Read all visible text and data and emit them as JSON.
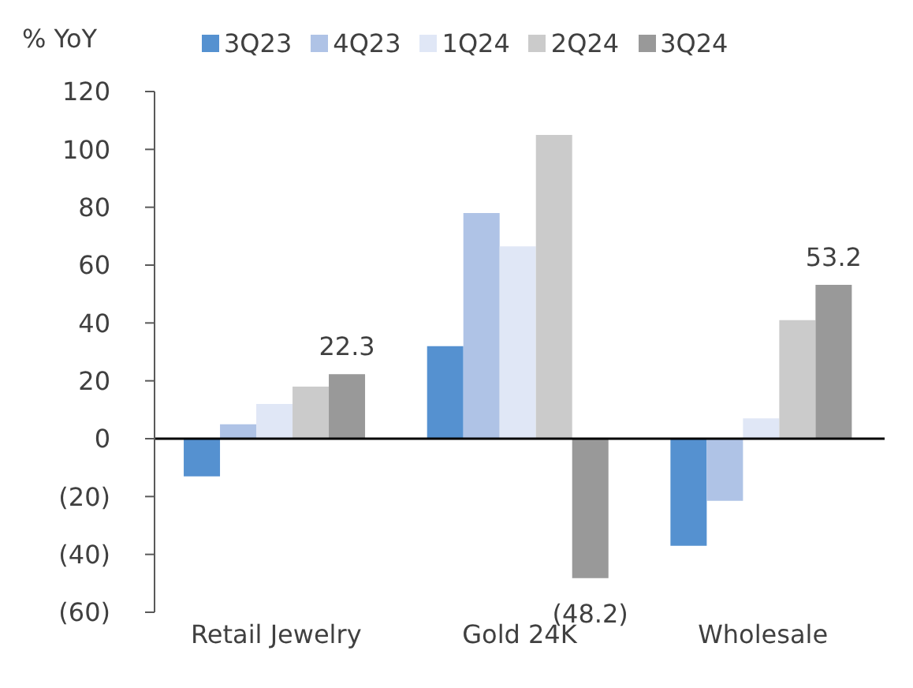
{
  "chart_data": {
    "type": "bar",
    "ylabel": "% YoY",
    "categories": [
      "Retail Jewelry",
      "Gold 24K",
      "Wholesale"
    ],
    "series": [
      {
        "name": "3Q23",
        "color": "#5591d0",
        "values": [
          -13,
          32,
          -37
        ]
      },
      {
        "name": "4Q23",
        "color": "#afc3e6",
        "values": [
          5,
          78,
          -21.5
        ]
      },
      {
        "name": "1Q24",
        "color": "#e0e7f6",
        "values": [
          12,
          66.5,
          7
        ]
      },
      {
        "name": "2Q24",
        "color": "#cbcbcb",
        "values": [
          18,
          105,
          41
        ]
      },
      {
        "name": "3Q24",
        "color": "#999999",
        "values": [
          22.3,
          -48.2,
          53.2
        ],
        "value_labels": [
          "22.3",
          "(48.2)",
          "53.2"
        ]
      }
    ],
    "ylim": [
      -60,
      120
    ],
    "yticks": [
      {
        "value": -60,
        "label": "(60)"
      },
      {
        "value": -40,
        "label": "(40)"
      },
      {
        "value": -20,
        "label": "(20)"
      },
      0,
      20,
      40,
      60,
      80,
      100,
      120
    ],
    "legend": "top"
  }
}
